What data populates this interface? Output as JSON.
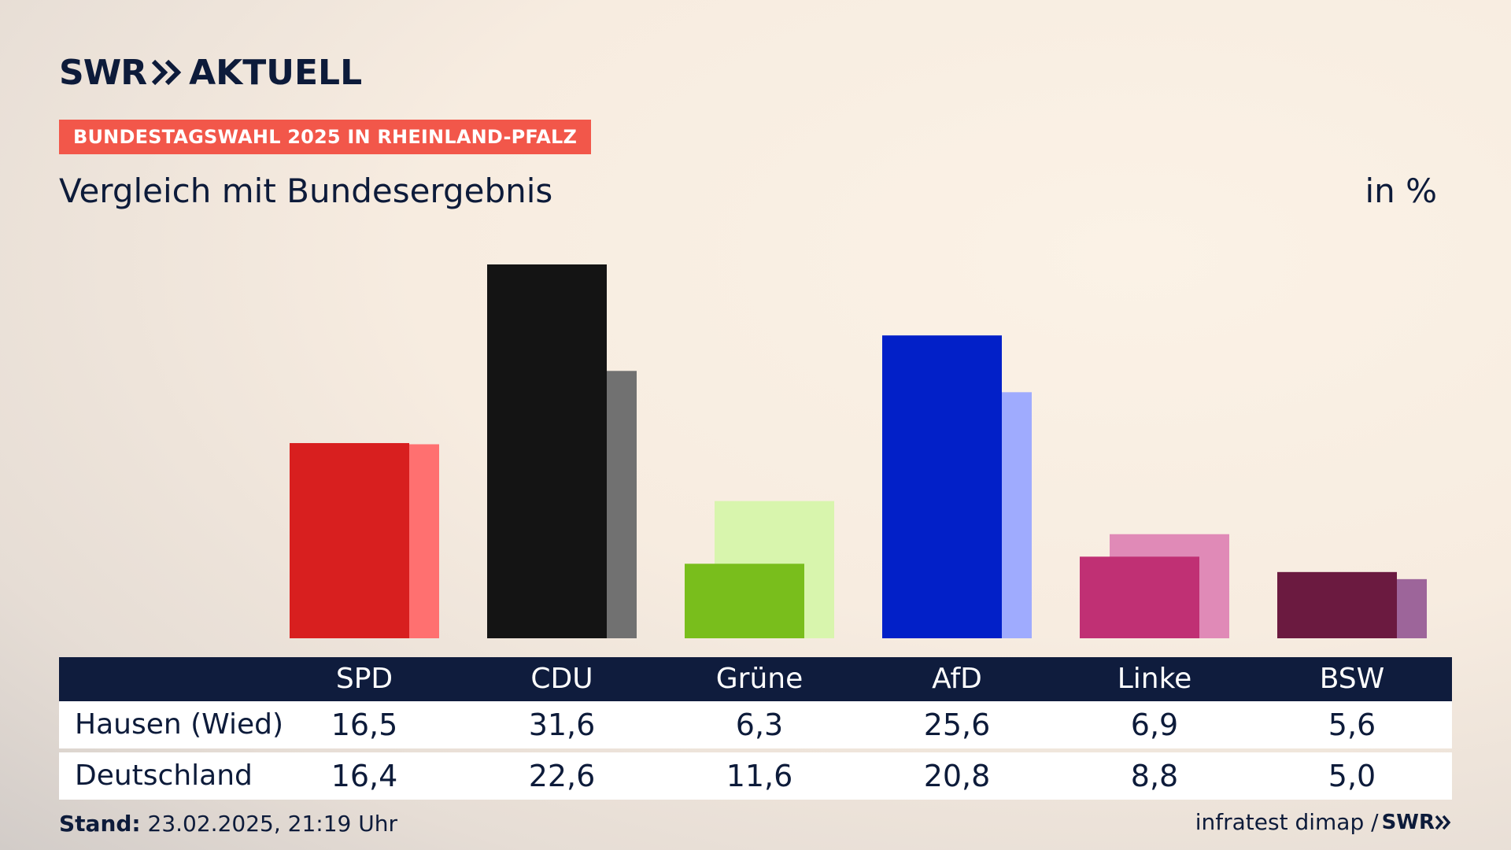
{
  "header": {
    "logo_main": "SWR",
    "logo_sub": "AKTUELL",
    "kicker": "BUNDESTAGSWAHL 2025 IN RHEINLAND-PFALZ",
    "title": "Vergleich mit Bundesergebnis",
    "unit": "in %"
  },
  "chart_data": {
    "type": "bar",
    "categories": [
      "SPD",
      "CDU",
      "Grüne",
      "AfD",
      "Linke",
      "BSW"
    ],
    "series": [
      {
        "name": "Hausen (Wied)",
        "values": [
          16.5,
          31.6,
          6.3,
          25.6,
          6.9,
          5.6
        ]
      },
      {
        "name": "Deutschland",
        "values": [
          16.4,
          22.6,
          11.6,
          20.8,
          8.8,
          5.0
        ]
      }
    ],
    "colors_primary": [
      "#d81f1f",
      "#141414",
      "#79be1c",
      "#0220c8",
      "#c03074",
      "#6b1a40"
    ],
    "colors_secondary": [
      "#ff7070",
      "#717171",
      "#d8f5ad",
      "#9fabfe",
      "#e08ab7",
      "#9d659a"
    ],
    "ylim": [
      0,
      33
    ]
  },
  "table": {
    "headers": [
      "SPD",
      "CDU",
      "Grüne",
      "AfD",
      "Linke",
      "BSW"
    ],
    "rows": [
      {
        "label": "Hausen (Wied)",
        "values": [
          "16,5",
          "31,6",
          "6,3",
          "25,6",
          "6,9",
          "5,6"
        ]
      },
      {
        "label": "Deutschland",
        "values": [
          "16,4",
          "22,6",
          "11,6",
          "20,8",
          "8,8",
          "5,0"
        ]
      }
    ]
  },
  "footer": {
    "stand_label": "Stand:",
    "stand_value": " 23.02.2025, 21:19 Uhr",
    "source": "infratest dimap /",
    "source_logo": "SWR"
  }
}
